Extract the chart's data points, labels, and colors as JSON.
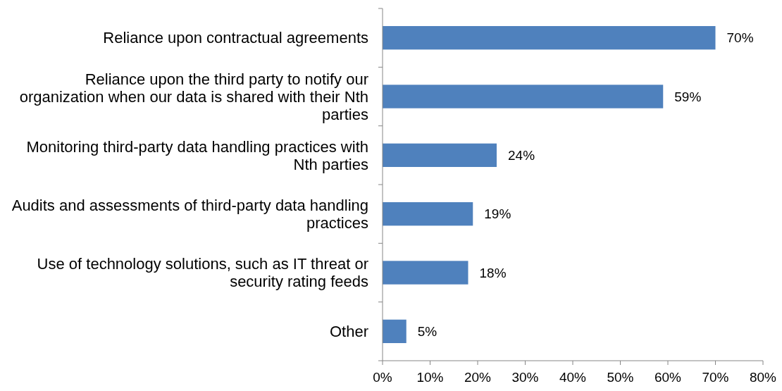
{
  "chart_data": {
    "type": "bar",
    "orientation": "horizontal",
    "categories": [
      "Reliance upon contractual agreements",
      "Reliance upon the third party to notify our organization when our data is shared with their Nth parties",
      "Monitoring third-party data handling practices with Nth parties",
      "Audits and assessments of third-party data handling practices",
      "Use of technology solutions, such as IT threat or security rating feeds",
      "Other"
    ],
    "values": [
      70,
      59,
      24,
      19,
      18,
      5
    ],
    "value_labels": [
      "70%",
      "59%",
      "24%",
      "19%",
      "18%",
      "5%"
    ],
    "color": "#4f81bd",
    "xlim": [
      0,
      80
    ],
    "xticks": [
      {
        "value": 0,
        "label": "0%"
      },
      {
        "value": 10,
        "label": "10%"
      },
      {
        "value": 20,
        "label": "20%"
      },
      {
        "value": 30,
        "label": "30%"
      },
      {
        "value": 40,
        "label": "40%"
      },
      {
        "value": 50,
        "label": "50%"
      },
      {
        "value": 60,
        "label": "60%"
      },
      {
        "value": 70,
        "label": "70%"
      },
      {
        "value": 80,
        "label": "80%"
      }
    ],
    "grid": false
  }
}
